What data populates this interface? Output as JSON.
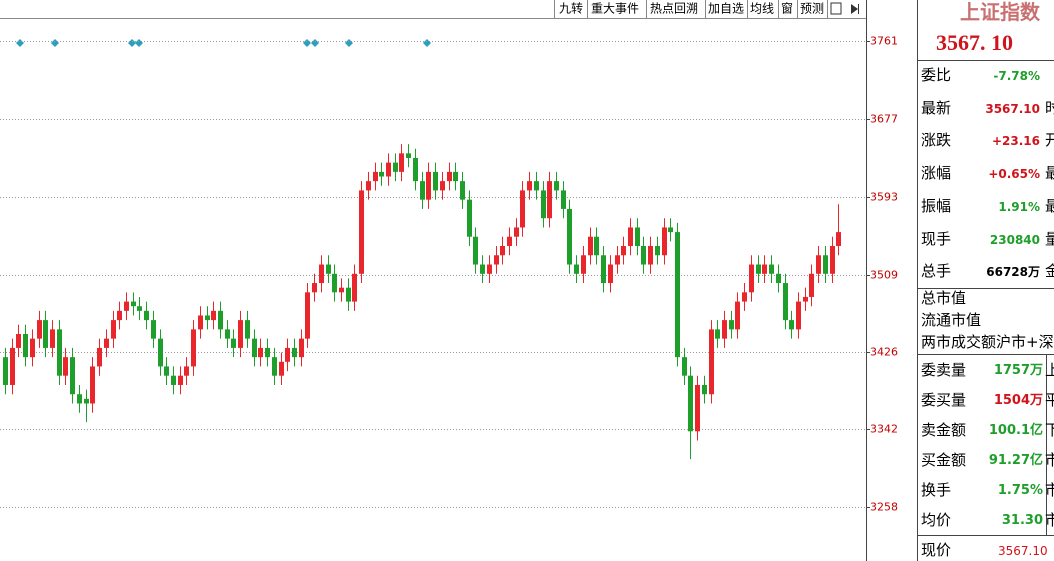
{
  "toolbar": [
    "九转",
    "重大事件",
    "热点回溯",
    "加自选",
    "均线",
    "窗",
    "预测"
  ],
  "chart_data": {
    "type": "candlestick",
    "ylim": [
      3200,
      3785
    ],
    "yticks": [
      3761,
      3677,
      3593,
      3509,
      3426,
      3342,
      3258
    ],
    "grid": true,
    "up_color": "#e8262b",
    "down_color": "#1e9e2a",
    "open": [
      3420,
      3390,
      3430,
      3445,
      3420,
      3440,
      3460,
      3430,
      3450,
      3400,
      3420,
      3380,
      3375,
      3370,
      3410,
      3430,
      3440,
      3460,
      3470,
      3480,
      3475,
      3470,
      3460,
      3440,
      3410,
      3400,
      3390,
      3400,
      3410,
      3450,
      3465,
      3460,
      3470,
      3450,
      3440,
      3430,
      3460,
      3440,
      3420,
      3430,
      3420,
      3400,
      3415,
      3430,
      3420,
      3440,
      3490,
      3500,
      3520,
      3510,
      3490,
      3495,
      3480,
      3510,
      3600,
      3610,
      3620,
      3615,
      3630,
      3620,
      3640,
      3635,
      3610,
      3590,
      3620,
      3600,
      3610,
      3620,
      3610,
      3590,
      3550,
      3520,
      3510,
      3520,
      3530,
      3540,
      3550,
      3560,
      3600,
      3610,
      3600,
      3570,
      3610,
      3600,
      3580,
      3520,
      3510,
      3530,
      3550,
      3530,
      3500,
      3520,
      3530,
      3540,
      3560,
      3540,
      3520,
      3540,
      3530,
      3560,
      3555,
      3420,
      3400,
      3340,
      3390,
      3380,
      3450,
      3440,
      3460,
      3450,
      3480,
      3490,
      3520,
      3510,
      3520,
      3510,
      3500,
      3460,
      3450,
      3480,
      3485,
      3510,
      3530,
      3510,
      3540
    ],
    "high": [
      3430,
      3440,
      3455,
      3455,
      3450,
      3470,
      3470,
      3460,
      3460,
      3430,
      3430,
      3390,
      3385,
      3420,
      3440,
      3450,
      3470,
      3480,
      3490,
      3490,
      3485,
      3480,
      3470,
      3450,
      3420,
      3410,
      3410,
      3420,
      3460,
      3475,
      3475,
      3480,
      3480,
      3460,
      3450,
      3470,
      3470,
      3450,
      3440,
      3440,
      3430,
      3425,
      3440,
      3440,
      3450,
      3500,
      3510,
      3530,
      3530,
      3520,
      3505,
      3505,
      3520,
      3610,
      3620,
      3630,
      3630,
      3640,
      3640,
      3650,
      3650,
      3645,
      3620,
      3630,
      3630,
      3620,
      3630,
      3630,
      3620,
      3600,
      3560,
      3530,
      3530,
      3540,
      3550,
      3560,
      3570,
      3610,
      3620,
      3620,
      3610,
      3620,
      3620,
      3610,
      3590,
      3530,
      3540,
      3560,
      3560,
      3540,
      3530,
      3540,
      3550,
      3570,
      3570,
      3550,
      3550,
      3550,
      3570,
      3570,
      3565,
      3430,
      3410,
      3400,
      3400,
      3460,
      3460,
      3470,
      3470,
      3490,
      3500,
      3530,
      3530,
      3530,
      3530,
      3520,
      3510,
      3470,
      3490,
      3495,
      3520,
      3540,
      3540,
      3550,
      3585
    ],
    "low": [
      3380,
      3380,
      3420,
      3410,
      3410,
      3430,
      3420,
      3420,
      3390,
      3390,
      3370,
      3360,
      3350,
      3360,
      3400,
      3420,
      3430,
      3450,
      3460,
      3465,
      3460,
      3450,
      3430,
      3400,
      3390,
      3380,
      3380,
      3390,
      3400,
      3440,
      3450,
      3450,
      3440,
      3430,
      3420,
      3420,
      3430,
      3410,
      3410,
      3410,
      3390,
      3390,
      3405,
      3410,
      3410,
      3430,
      3480,
      3490,
      3500,
      3480,
      3480,
      3470,
      3470,
      3500,
      3590,
      3600,
      3605,
      3605,
      3610,
      3610,
      3625,
      3600,
      3580,
      3580,
      3590,
      3590,
      3600,
      3600,
      3580,
      3540,
      3510,
      3500,
      3500,
      3510,
      3520,
      3530,
      3540,
      3550,
      3590,
      3590,
      3560,
      3560,
      3590,
      3570,
      3510,
      3500,
      3500,
      3520,
      3520,
      3490,
      3490,
      3510,
      3520,
      3530,
      3530,
      3510,
      3510,
      3520,
      3520,
      3545,
      3410,
      3390,
      3310,
      3330,
      3370,
      3370,
      3430,
      3430,
      3440,
      3440,
      3470,
      3480,
      3500,
      3500,
      3500,
      3490,
      3450,
      3440,
      3440,
      3470,
      3475,
      3500,
      3500,
      3500,
      3530
    ],
    "close": [
      3390,
      3430,
      3445,
      3420,
      3440,
      3460,
      3430,
      3450,
      3400,
      3420,
      3380,
      3370,
      3370,
      3410,
      3430,
      3440,
      3460,
      3470,
      3480,
      3475,
      3470,
      3460,
      3440,
      3410,
      3400,
      3390,
      3400,
      3410,
      3450,
      3465,
      3460,
      3470,
      3450,
      3440,
      3430,
      3460,
      3440,
      3420,
      3430,
      3420,
      3400,
      3415,
      3430,
      3420,
      3440,
      3490,
      3500,
      3520,
      3510,
      3490,
      3495,
      3480,
      3510,
      3600,
      3610,
      3620,
      3615,
      3630,
      3620,
      3640,
      3635,
      3610,
      3590,
      3620,
      3600,
      3610,
      3620,
      3610,
      3590,
      3550,
      3520,
      3510,
      3520,
      3530,
      3540,
      3550,
      3560,
      3600,
      3610,
      3600,
      3570,
      3610,
      3600,
      3580,
      3520,
      3510,
      3530,
      3550,
      3530,
      3500,
      3520,
      3530,
      3540,
      3560,
      3540,
      3520,
      3540,
      3530,
      3560,
      3555,
      3420,
      3400,
      3340,
      3390,
      3380,
      3450,
      3440,
      3460,
      3450,
      3480,
      3490,
      3520,
      3510,
      3520,
      3510,
      3500,
      3460,
      3450,
      3480,
      3485,
      3510,
      3530,
      3510,
      3540,
      3555
    ]
  },
  "panel": {
    "title": "上证指数",
    "price": "3567. 10",
    "rows": [
      {
        "label": "委比",
        "value": "-7.78%",
        "tail": "",
        "color": "#1e9e2a"
      },
      {
        "label": "最新",
        "value": "3567.10",
        "tail": "时",
        "color": "#d0141b"
      },
      {
        "label": "涨跌",
        "value": "+23.16",
        "tail": "开",
        "color": "#d0141b"
      },
      {
        "label": "涨幅",
        "value": "+0.65%",
        "tail": "最",
        "color": "#d0141b"
      },
      {
        "label": "振幅",
        "value": "1.91%",
        "tail": "最",
        "color": "#1e9e2a"
      },
      {
        "label": "现手",
        "value": "230840",
        "tail": "量",
        "color": "#1e9e2a"
      },
      {
        "label": "总手",
        "value": "66728万",
        "tail": "金",
        "color": "#000000"
      }
    ],
    "mid": [
      "总市值",
      "流通市值",
      "两市成交额",
      "沪市+深"
    ],
    "rows2": [
      {
        "label": "委卖量",
        "value": "1757万",
        "tail": "上",
        "color": "#1e9e2a"
      },
      {
        "label": "委买量",
        "value": "1504万",
        "tail": "平",
        "color": "#d0141b"
      },
      {
        "label": "卖金额",
        "value": "100.1亿",
        "tail": "下",
        "color": "#1e9e2a"
      },
      {
        "label": "买金额",
        "value": "91.27亿",
        "tail": "市",
        "color": "#1e9e2a"
      },
      {
        "label": "换手",
        "value": "1.75%",
        "tail": "市",
        "color": "#1e9e2a"
      },
      {
        "label": "均价",
        "value": "31.30",
        "tail": "市",
        "color": "#1e9e2a"
      }
    ],
    "last": {
      "label": "现价",
      "value": "3567.10"
    }
  }
}
